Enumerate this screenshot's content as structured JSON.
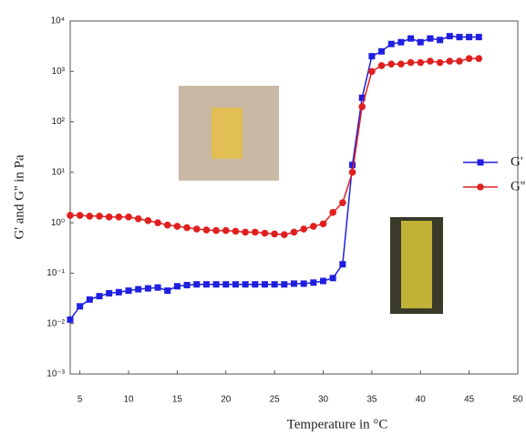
{
  "chart_data": {
    "type": "line",
    "x_label": "Temperature in °C",
    "y_label": "G' and G'' in Pa",
    "xlim": [
      4,
      50
    ],
    "xticks": [
      5,
      10,
      15,
      20,
      25,
      30,
      35,
      40,
      45,
      50
    ],
    "ylim": [
      0.001,
      10000
    ],
    "log_y": true,
    "yticks": [
      {
        "value": 10000,
        "label": "10⁴"
      },
      {
        "value": 1000,
        "label": "10³"
      },
      {
        "value": 100,
        "label": "10²"
      },
      {
        "value": 10,
        "label": "10¹"
      },
      {
        "value": 1,
        "label": "10⁰"
      },
      {
        "value": 0.1,
        "label": "10⁻¹"
      },
      {
        "value": 0.01,
        "label": "10⁻²"
      },
      {
        "value": 0.001,
        "label": "10⁻³"
      }
    ],
    "x": [
      4,
      5,
      6,
      7,
      8,
      9,
      10,
      11,
      12,
      13,
      14,
      15,
      16,
      17,
      18,
      19,
      20,
      21,
      22,
      23,
      24,
      25,
      26,
      27,
      28,
      29,
      30,
      31,
      32,
      33,
      34,
      35,
      36,
      37,
      38,
      39,
      40,
      41,
      42,
      43,
      44,
      45,
      46
    ],
    "series": [
      {
        "name": "G'",
        "color": "#1f1fe0",
        "marker": "square",
        "values": [
          0.012,
          0.022,
          0.03,
          0.035,
          0.04,
          0.042,
          0.045,
          0.048,
          0.05,
          0.052,
          0.045,
          0.055,
          0.058,
          0.06,
          0.06,
          0.06,
          0.06,
          0.06,
          0.06,
          0.06,
          0.06,
          0.06,
          0.06,
          0.062,
          0.062,
          0.065,
          0.07,
          0.08,
          0.15,
          14,
          300,
          2000,
          2500,
          3500,
          3800,
          4500,
          3800,
          4500,
          4200,
          5000,
          4800,
          4800,
          4800
        ]
      },
      {
        "name": "G''",
        "color": "#e01f1f",
        "marker": "circle",
        "values": [
          1.4,
          1.4,
          1.35,
          1.35,
          1.3,
          1.3,
          1.3,
          1.2,
          1.1,
          1.0,
          0.9,
          0.85,
          0.8,
          0.75,
          0.72,
          0.7,
          0.7,
          0.68,
          0.65,
          0.65,
          0.62,
          0.6,
          0.58,
          0.65,
          0.75,
          0.85,
          0.95,
          1.6,
          2.5,
          10,
          200,
          1000,
          1300,
          1400,
          1400,
          1500,
          1500,
          1600,
          1500,
          1600,
          1600,
          1800,
          1800
        ]
      }
    ]
  }
}
